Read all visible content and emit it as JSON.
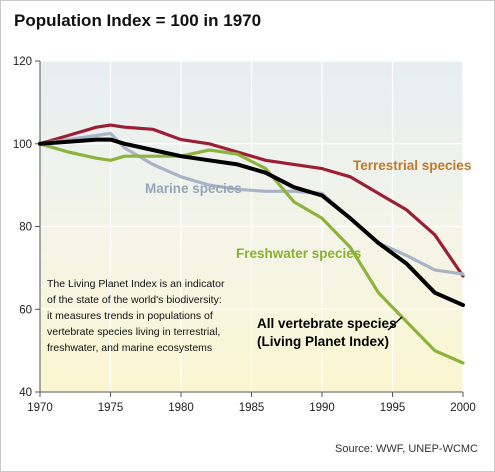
{
  "chart_data": {
    "type": "line",
    "title": "Population Index = 100 in 1970",
    "xlim": [
      1970,
      2000
    ],
    "ylim": [
      40,
      120
    ],
    "x_ticks": [
      "1970",
      "1975",
      "1980",
      "1985",
      "1990",
      "1995",
      "2000"
    ],
    "y_ticks": [
      "40",
      "60",
      "80",
      "100",
      "120"
    ],
    "grid": true,
    "x": [
      1970,
      1972,
      1974,
      1975,
      1976,
      1978,
      1980,
      1982,
      1984,
      1986,
      1988,
      1990,
      1992,
      1994,
      1996,
      1998,
      2000
    ],
    "series": [
      {
        "name": "Terrestrial species",
        "color": "#9a1f35",
        "values": [
          100,
          102,
          104,
          104.5,
          104,
          103.5,
          101,
          100,
          98,
          96,
          95,
          94,
          92,
          88,
          84,
          78,
          68
        ]
      },
      {
        "name": "Marine species",
        "color": "#a8b4c6",
        "values": [
          100,
          101,
          102,
          102.5,
          99,
          95,
          92,
          90,
          89,
          88.5,
          88.5,
          88,
          82,
          76,
          73,
          69.5,
          68.5
        ]
      },
      {
        "name": "Freshwater species",
        "color": "#8db33c",
        "values": [
          100,
          98,
          96.5,
          96,
          97,
          97,
          97,
          98.5,
          97.5,
          94,
          86,
          82,
          75,
          64,
          57,
          50,
          47
        ]
      },
      {
        "name": "All vertebrate species (Living Planet Index)",
        "color": "#000000",
        "values": [
          100,
          100.5,
          101,
          101,
          100,
          98.5,
          97,
          96,
          95,
          93,
          89.5,
          87.5,
          82,
          76,
          71,
          64,
          61
        ]
      }
    ],
    "series_labels": [
      {
        "lines": [
          "Terrestrial species"
        ],
        "color": "#c07a2c"
      },
      {
        "lines": [
          "Marine species"
        ],
        "color": "#98a5b9"
      },
      {
        "lines": [
          "Freshwater species"
        ],
        "color": "#88b034"
      },
      {
        "lines": [
          "All vertebrate species",
          "(Living Planet Index)"
        ],
        "color": "#000000"
      }
    ],
    "annotation": [
      "The Living Planet Index is an indicator",
      "of the state of the world's biodiversity:",
      "it measures trends in populations of",
      "vertebrate species living in terrestrial,",
      "freshwater, and marine ecosystems"
    ],
    "source": "Source: WWF, UNEP-WCMC"
  }
}
